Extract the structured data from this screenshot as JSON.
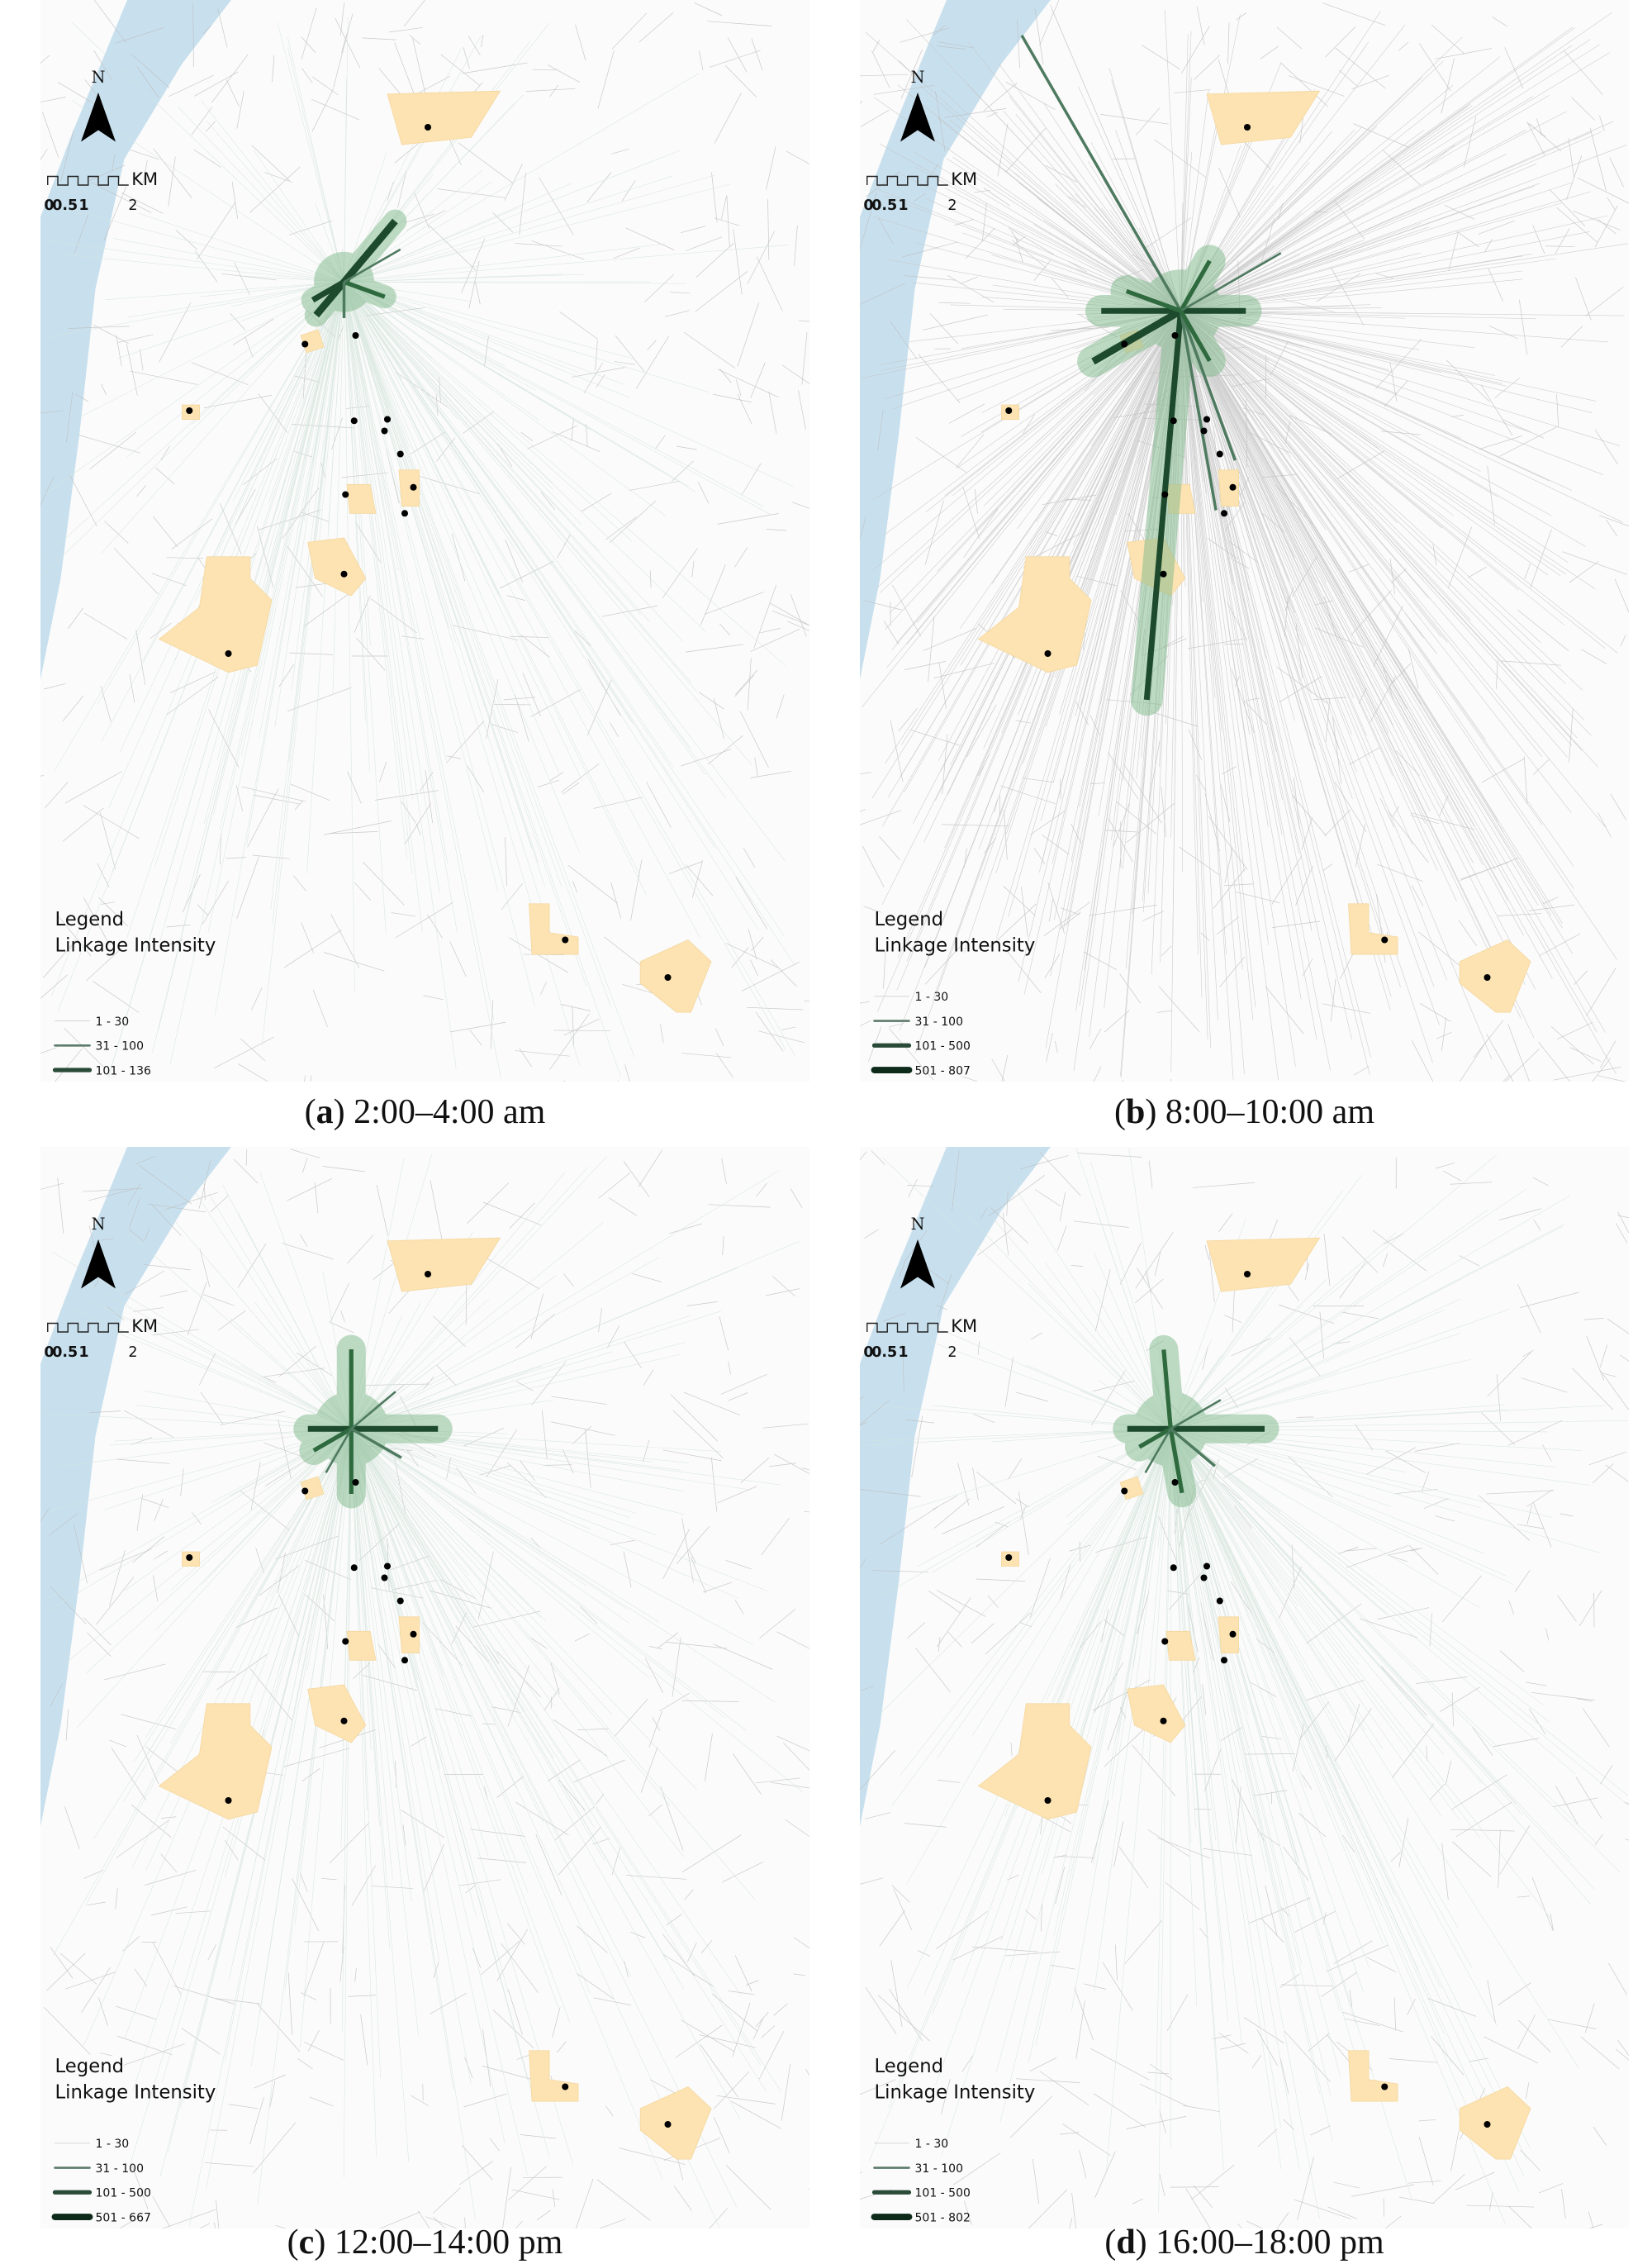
{
  "panels": [
    {
      "caption": {
        "prefix": "(",
        "letter": "a",
        "rest": ") 2:00–4:00 am"
      },
      "legend": {
        "title": "Legend",
        "subtitle": "Linkage Intensity",
        "items": [
          "1 - 30",
          "31 - 100",
          "101 - 136"
        ]
      }
    },
    {
      "caption": {
        "prefix": "(",
        "letter": "b",
        "rest": ") 8:00–10:00 am"
      },
      "legend": {
        "title": "Legend",
        "subtitle": "Linkage Intensity",
        "items": [
          "1 - 30",
          "31 - 100",
          "101 - 500",
          "501 - 807"
        ]
      }
    },
    {
      "caption": {
        "prefix": "(",
        "letter": "c",
        "rest": ") 12:00–14:00 pm"
      },
      "legend": {
        "title": "Legend",
        "subtitle": "Linkage Intensity",
        "items": [
          "1 - 30",
          "31 - 100",
          "101 - 500",
          "501 - 667"
        ]
      }
    },
    {
      "caption": {
        "prefix": "(",
        "letter": "d",
        "rest": ") 16:00–18:00 pm"
      },
      "legend": {
        "title": "Legend",
        "subtitle": "Linkage Intensity",
        "items": [
          "1 - 30",
          "31 - 100",
          "101 - 500",
          "501 - 802"
        ]
      }
    }
  ],
  "north": "N",
  "scale_bar": {
    "labels": [
      "0",
      "0.5",
      "1",
      "2"
    ],
    "unit": "KM"
  }
}
